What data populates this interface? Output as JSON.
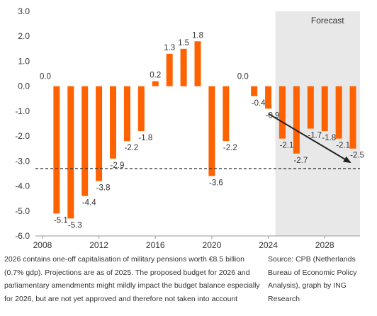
{
  "chart_data": {
    "type": "bar",
    "x": [
      2008,
      2009,
      2010,
      2011,
      2012,
      2013,
      2014,
      2015,
      2016,
      2017,
      2018,
      2019,
      2020,
      2021,
      2022,
      2023,
      2024,
      2025,
      2026,
      2027,
      2028,
      2029,
      2030
    ],
    "values": [
      0.0,
      -5.1,
      -5.3,
      -4.4,
      -3.8,
      -2.9,
      -2.2,
      -1.8,
      0.2,
      1.3,
      1.5,
      1.8,
      -3.6,
      -2.2,
      0.0,
      -0.4,
      -0.9,
      -2.1,
      -2.7,
      -1.7,
      -1.8,
      -2.1,
      -2.5
    ],
    "labels": [
      "0.0",
      "-5.1",
      "-5.3",
      "-4.4",
      "-3.8",
      "-2.9",
      "-2.2",
      "-1.8",
      "0.2",
      "1.3",
      "1.5",
      "1.8",
      "-3.6",
      "-2.2",
      "0.0",
      "-0.4",
      "-0.9",
      "-2.1",
      "-2.7",
      "-1.7",
      "-1.8",
      "-2.1",
      "-2.5"
    ],
    "xticks": [
      "2008",
      "2012",
      "2016",
      "2020",
      "2024",
      "2028"
    ],
    "yticks": [
      "3.0",
      "2.0",
      "1.0",
      "0.0",
      "-1.0",
      "-2.0",
      "-3.0",
      "-4.0",
      "-5.0",
      "-6.0"
    ],
    "ylim": [
      -6,
      3
    ],
    "xlim": [
      2008,
      2031
    ],
    "forecast_label": "Forecast",
    "forecast_start": 2025,
    "reference_line": -3.3,
    "trend_arrow": {
      "from": [
        2024,
        -1.1
      ],
      "to": [
        2029.8,
        -3.05
      ]
    },
    "title": "",
    "xlabel": "",
    "ylabel": "",
    "grid": false,
    "colors": {
      "bar": "#ff6200",
      "forecast_bg": "#e8e8e8",
      "axis": "#999999",
      "reference": "#333333",
      "arrow": "#222222"
    }
  },
  "note": "2026 contains one-off capitalisation of military pensions worth €8.5 billion (0.7% gdp). Projections are as of 2025. The proposed budget for 2026 and parliamentary amendments might mildly impact the budget balance especially for 2026, but are not yet approved and therefore not taken into account",
  "source": "Source: CPB (Netherlands Bureau of Economic Policy Analysis), graph by ING Research"
}
